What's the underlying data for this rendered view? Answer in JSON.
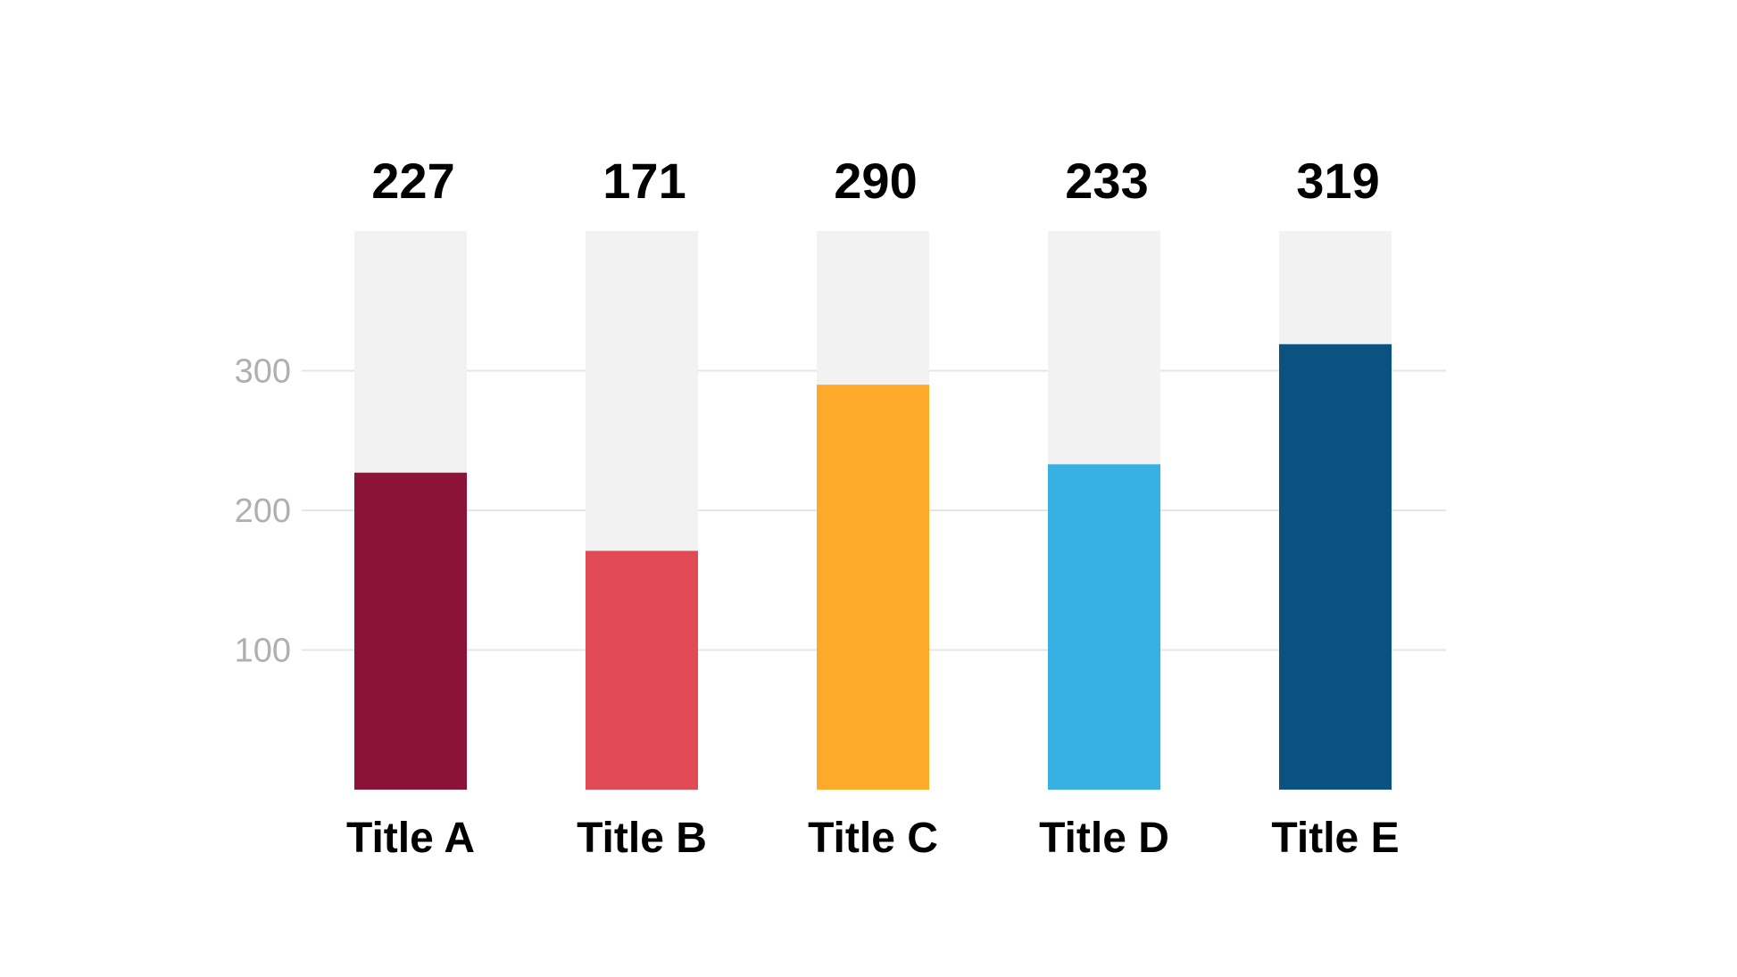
{
  "chart_data": {
    "type": "bar",
    "categories": [
      "Title A",
      "Title B",
      "Title C",
      "Title D",
      "Title E"
    ],
    "values": [
      227,
      171,
      290,
      233,
      319
    ],
    "value_labels": [
      "227",
      "171",
      "290",
      "233",
      "319"
    ],
    "colors": [
      "#8b1239",
      "#e24a56",
      "#fdaa2b",
      "#37b1e3",
      "#0b5281"
    ],
    "background_bar_color": "#f2f2f2",
    "background_bar_max": 400,
    "ylim": [
      0,
      400
    ],
    "yticks": [
      100,
      200,
      300
    ],
    "ytick_labels": [
      "100",
      "200",
      "300"
    ],
    "grid": true,
    "gridline_color": "#e6e6e6",
    "title": "",
    "xlabel": "",
    "ylabel": ""
  }
}
